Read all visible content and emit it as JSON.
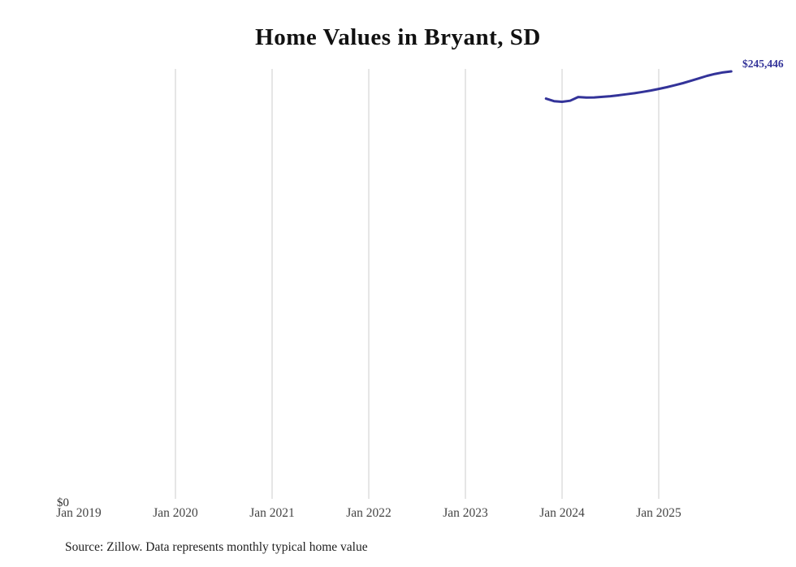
{
  "chart": {
    "title": "Home Values in Bryant, SD",
    "end_label": "$245,446",
    "y_zero_label": "$0",
    "source": "Source: Zillow. Data represents monthly typical home value",
    "line_color": "#333399",
    "grid_color": "#cccccc"
  },
  "chart_data": {
    "type": "line",
    "title": "Home Values in Bryant, SD",
    "xlabel": "",
    "ylabel": "",
    "x_ticks": [
      "Jan 2019",
      "Jan 2020",
      "Jan 2021",
      "Jan 2022",
      "Jan 2023",
      "Jan 2024",
      "Jan 2025"
    ],
    "ylim": [
      0,
      245446
    ],
    "grid": "vertical-only",
    "legend": false,
    "annotations": [
      "$245,446",
      "$0"
    ],
    "series": [
      {
        "name": "Monthly typical home value",
        "points": [
          {
            "month": "2023-11",
            "value": 230000
          },
          {
            "month": "2023-12",
            "value": 228600
          },
          {
            "month": "2024-01",
            "value": 228200
          },
          {
            "month": "2024-02",
            "value": 228800
          },
          {
            "month": "2024-03",
            "value": 230900
          },
          {
            "month": "2024-04",
            "value": 230600
          },
          {
            "month": "2024-05",
            "value": 230700
          },
          {
            "month": "2024-06",
            "value": 231000
          },
          {
            "month": "2024-07",
            "value": 231400
          },
          {
            "month": "2024-08",
            "value": 231900
          },
          {
            "month": "2024-09",
            "value": 232500
          },
          {
            "month": "2024-10",
            "value": 233100
          },
          {
            "month": "2024-11",
            "value": 233800
          },
          {
            "month": "2024-12",
            "value": 234600
          },
          {
            "month": "2025-01",
            "value": 235500
          },
          {
            "month": "2025-02",
            "value": 236500
          },
          {
            "month": "2025-03",
            "value": 237600
          },
          {
            "month": "2025-04",
            "value": 238800
          },
          {
            "month": "2025-05",
            "value": 240100
          },
          {
            "month": "2025-06",
            "value": 241500
          },
          {
            "month": "2025-07",
            "value": 242900
          },
          {
            "month": "2025-08",
            "value": 244000
          },
          {
            "month": "2025-09",
            "value": 244900
          },
          {
            "month": "2025-10",
            "value": 245446
          }
        ]
      }
    ]
  }
}
